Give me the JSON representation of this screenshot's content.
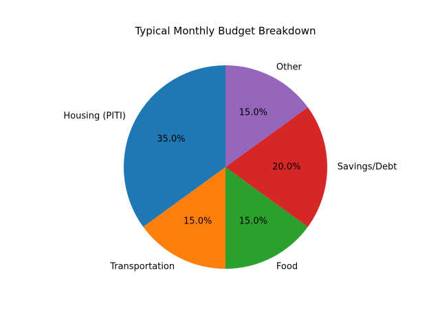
{
  "chart_data": {
    "type": "pie",
    "title": "Typical Monthly Budget Breakdown",
    "categories": [
      "Housing (PITI)",
      "Transportation",
      "Food",
      "Savings/Debt",
      "Other"
    ],
    "values": [
      35.0,
      15.0,
      15.0,
      20.0,
      15.0
    ],
    "percent_labels": [
      "35.0%",
      "15.0%",
      "15.0%",
      "20.0%",
      "15.0%"
    ],
    "colors": [
      "#1f77b4",
      "#ff7f0e",
      "#2ca02c",
      "#d62728",
      "#9467bd"
    ],
    "start_angle_deg": 90,
    "direction": "counterclockwise",
    "legend": "none"
  }
}
